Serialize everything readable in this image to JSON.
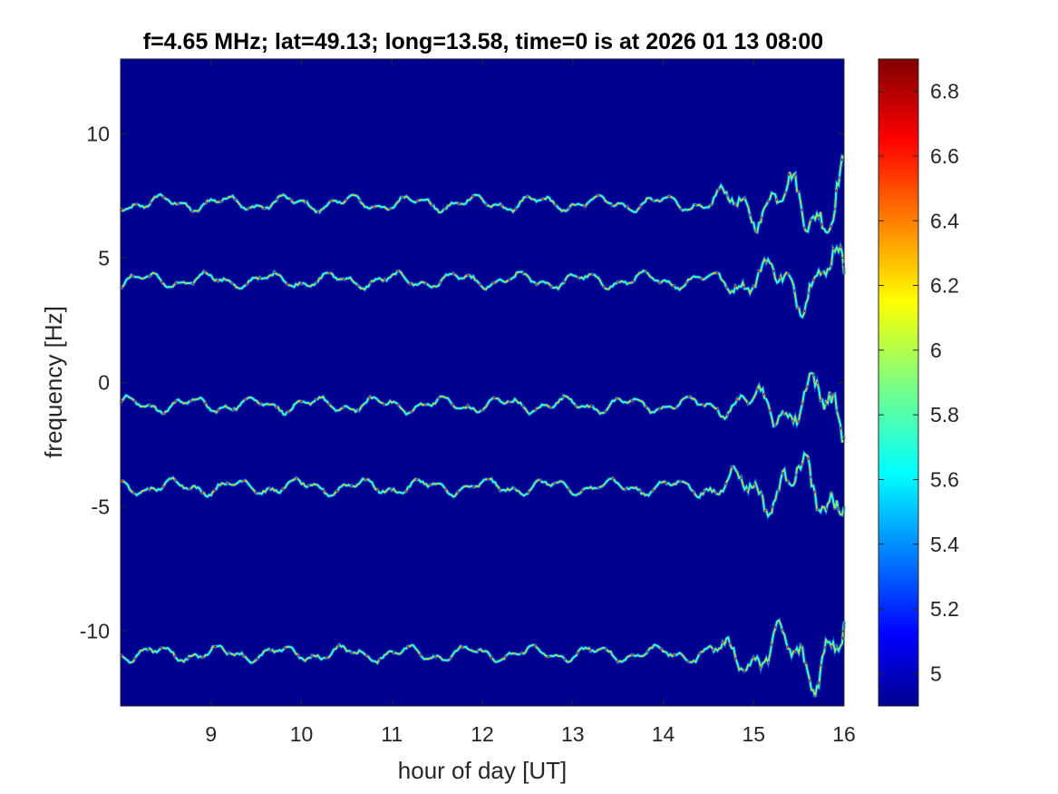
{
  "chart_data": {
    "type": "heatmap",
    "title": "f=4.65 MHz;  lat=49.13; long=13.58, time=0 is at 2026 01 13 08:00",
    "xlabel": "hour of day [UT]",
    "ylabel": "frequency [Hz]",
    "xlim": [
      8,
      16
    ],
    "ylim": [
      -13,
      13
    ],
    "xticks": [
      9,
      10,
      11,
      12,
      13,
      14,
      15,
      16
    ],
    "yticks": [
      10,
      5,
      0,
      -5,
      -10
    ],
    "colorbar": {
      "range": [
        4.9,
        6.9
      ],
      "ticks": [
        6.8,
        6.6,
        6.4,
        6.2,
        6,
        5.8,
        5.6,
        5.4,
        5.2,
        5
      ],
      "colormap": "jet"
    },
    "background_color": "#00008f",
    "traces": [
      {
        "base_frequency": 7.2,
        "start_hour": 8.0,
        "disturbance_from_hour": 14.3
      },
      {
        "base_frequency": 4.1,
        "start_hour": 8.0,
        "disturbance_from_hour": 14.5
      },
      {
        "base_frequency": -0.9,
        "start_hour": 8.0,
        "disturbance_from_hour": 14.5
      },
      {
        "base_frequency": -4.2,
        "start_hour": 8.0,
        "disturbance_from_hour": 14.3
      },
      {
        "base_frequency": -10.9,
        "start_hour": 8.0,
        "disturbance_from_hour": 14.3
      }
    ]
  }
}
